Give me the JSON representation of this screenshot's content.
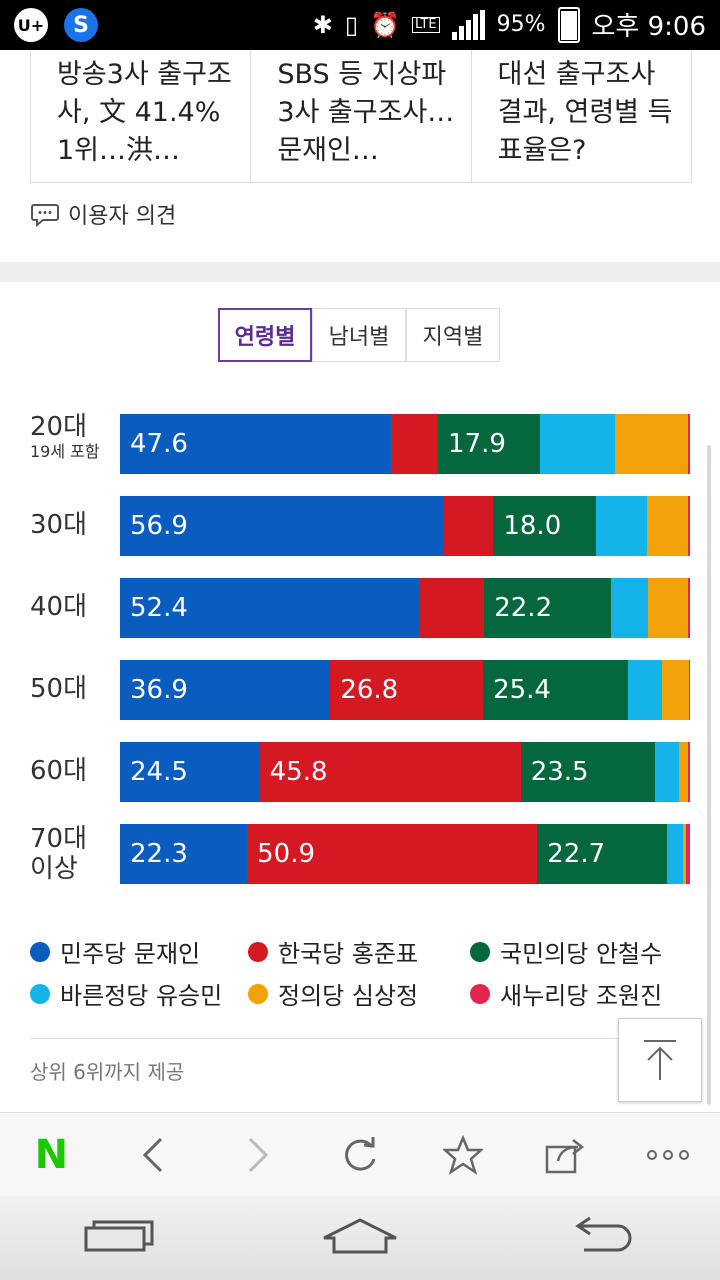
{
  "status_bar": {
    "app_icons": [
      "U+",
      "S"
    ],
    "battery": "95%",
    "time": "오후 9:06",
    "network": "LTE"
  },
  "news_cards": [
    "방송3사 출구조사, 文 41.4% 1위…洪…",
    "SBS 등 지상파 3사 출구조사…문재인…",
    "대선 출구조사 결과, 연령별 득표율은?"
  ],
  "opinion_label": "이용자 의견",
  "tabs": [
    {
      "label": "연령별",
      "active": true
    },
    {
      "label": "남녀별",
      "active": false
    },
    {
      "label": "지역별",
      "active": false
    }
  ],
  "chart_data": {
    "type": "bar",
    "stacked": true,
    "orientation": "horizontal",
    "categories": [
      "20대",
      "30대",
      "40대",
      "50대",
      "60대",
      "70대 이상"
    ],
    "category_sublabels": [
      "19세 포함",
      "",
      "",
      "",
      "",
      ""
    ],
    "xlim": [
      0,
      100
    ],
    "series": [
      {
        "name": "민주당 문재인",
        "color": "#0a5cbf",
        "values": [
          47.6,
          56.9,
          52.4,
          36.9,
          24.5,
          22.3
        ],
        "show_labels": [
          true,
          true,
          true,
          true,
          true,
          true
        ]
      },
      {
        "name": "한국당 홍준표",
        "color": "#d51923",
        "values": [
          8.2,
          8.6,
          11.5,
          26.8,
          45.8,
          50.9
        ],
        "show_labels": [
          false,
          false,
          false,
          true,
          true,
          true
        ]
      },
      {
        "name": "국민의당 안철수",
        "color": "#04673e",
        "values": [
          17.9,
          18.0,
          22.2,
          25.4,
          23.5,
          22.7
        ],
        "show_labels": [
          true,
          true,
          true,
          true,
          true,
          true
        ]
      },
      {
        "name": "바른정당 유승민",
        "color": "#14b4ea",
        "values": [
          13.2,
          8.9,
          6.6,
          6.0,
          4.2,
          2.9
        ],
        "show_labels": [
          false,
          false,
          false,
          false,
          false,
          false
        ]
      },
      {
        "name": "정의당 심상정",
        "color": "#f3a10b",
        "values": [
          12.7,
          7.3,
          7.0,
          4.7,
          1.6,
          0.5
        ],
        "show_labels": [
          false,
          false,
          false,
          false,
          false,
          false
        ]
      },
      {
        "name": "새누리당 조원진",
        "color": "#e0254f",
        "values": [
          0.4,
          0.3,
          0.3,
          0.2,
          0.4,
          0.7
        ],
        "show_labels": [
          false,
          false,
          false,
          false,
          false,
          false
        ]
      }
    ]
  },
  "footer_note": "상위 6위까지 제공",
  "browser_bar": [
    "naver-home",
    "back",
    "forward",
    "refresh",
    "bookmark",
    "share",
    "more"
  ]
}
